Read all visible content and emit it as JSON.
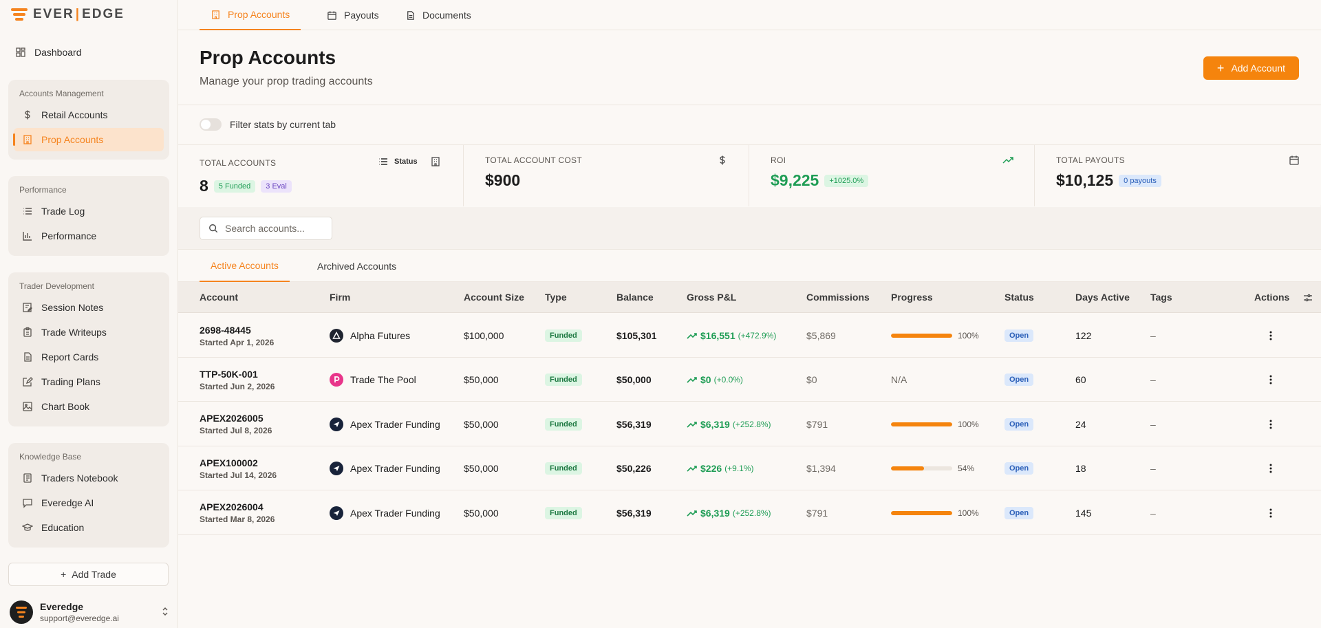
{
  "brand": {
    "name": "EVER|EDGE",
    "accent": "#f5841f"
  },
  "sidebar": {
    "dashboard": "Dashboard",
    "groups": [
      {
        "title": "Accounts Management",
        "items": [
          {
            "label": "Retail Accounts",
            "icon": "dollar-icon"
          },
          {
            "label": "Prop Accounts",
            "icon": "building-icon",
            "active": true
          }
        ]
      },
      {
        "title": "Performance",
        "items": [
          {
            "label": "Trade Log",
            "icon": "list-icon"
          },
          {
            "label": "Performance",
            "icon": "bar-chart-icon"
          }
        ]
      },
      {
        "title": "Trader Development",
        "items": [
          {
            "label": "Session Notes",
            "icon": "note-edit-icon"
          },
          {
            "label": "Trade Writeups",
            "icon": "clipboard-icon"
          },
          {
            "label": "Report Cards",
            "icon": "report-icon"
          },
          {
            "label": "Trading Plans",
            "icon": "pencil-square-icon"
          },
          {
            "label": "Chart Book",
            "icon": "image-icon"
          }
        ]
      },
      {
        "title": "Knowledge Base",
        "items": [
          {
            "label": "Traders Notebook",
            "icon": "notebook-icon"
          },
          {
            "label": "Everedge AI",
            "icon": "chat-icon"
          },
          {
            "label": "Education",
            "icon": "graduation-cap-icon"
          }
        ]
      }
    ],
    "add_trade": "Add Trade",
    "user": {
      "name": "Everedge",
      "email": "support@everedge.ai"
    }
  },
  "top_tabs": [
    "Prop Accounts",
    "Payouts",
    "Documents"
  ],
  "header": {
    "title": "Prop Accounts",
    "subtitle": "Manage your prop trading accounts",
    "add_button": "Add Account"
  },
  "filter": {
    "label": "Filter stats by current tab",
    "on": false
  },
  "stats": {
    "total_accounts": {
      "label": "TOTAL ACCOUNTS",
      "value": "8",
      "funded": "5 Funded",
      "eval": "3 Eval",
      "status_label": "Status"
    },
    "total_cost": {
      "label": "TOTAL ACCOUNT COST",
      "value": "$900"
    },
    "roi": {
      "label": "ROI",
      "value": "$9,225",
      "badge": "+1025.0%"
    },
    "total_payouts": {
      "label": "TOTAL PAYOUTS",
      "value": "$10,125",
      "badge": "0 payouts"
    }
  },
  "search": {
    "placeholder": "Search accounts..."
  },
  "sub_tabs": [
    "Active Accounts",
    "Archived Accounts"
  ],
  "table": {
    "columns": [
      "Account",
      "Firm",
      "Account Size",
      "Type",
      "Balance",
      "Gross P&L",
      "Commissions",
      "Progress",
      "Status",
      "Days Active",
      "Tags",
      "Actions"
    ],
    "rows": [
      {
        "account": "2698-48445",
        "started": "Started Apr 1, 2026",
        "firm": "Alpha Futures",
        "firm_logo": "alpha",
        "size": "$100,000",
        "type": "Funded",
        "balance": "$105,301",
        "pnl": "$16,551",
        "pnl_pct": "(+472.9%)",
        "commissions": "$5,869",
        "progress": 1.0,
        "progress_label": "100%",
        "status": "Open",
        "days": "122",
        "tags": "–"
      },
      {
        "account": "TTP-50K-001",
        "started": "Started Jun 2, 2026",
        "firm": "Trade The Pool",
        "firm_logo": "ttp",
        "size": "$50,000",
        "type": "Funded",
        "balance": "$50,000",
        "pnl": "$0",
        "pnl_pct": "(+0.0%)",
        "commissions": "$0",
        "progress": null,
        "progress_label": "N/A",
        "status": "Open",
        "days": "60",
        "tags": "–"
      },
      {
        "account": "APEX2026005",
        "started": "Started Jul 8, 2026",
        "firm": "Apex Trader Funding",
        "firm_logo": "apex",
        "size": "$50,000",
        "type": "Funded",
        "balance": "$56,319",
        "pnl": "$6,319",
        "pnl_pct": "(+252.8%)",
        "commissions": "$791",
        "progress": 1.0,
        "progress_label": "100%",
        "status": "Open",
        "days": "24",
        "tags": "–"
      },
      {
        "account": "APEX100002",
        "started": "Started Jul 14, 2026",
        "firm": "Apex Trader Funding",
        "firm_logo": "apex",
        "size": "$50,000",
        "type": "Funded",
        "balance": "$50,226",
        "pnl": "$226",
        "pnl_pct": "(+9.1%)",
        "commissions": "$1,394",
        "progress": 0.54,
        "progress_label": "54%",
        "status": "Open",
        "days": "18",
        "tags": "–"
      },
      {
        "account": "APEX2026004",
        "started": "Started Mar 8, 2026",
        "firm": "Apex Trader Funding",
        "firm_logo": "apex",
        "size": "$50,000",
        "type": "Funded",
        "balance": "$56,319",
        "pnl": "$6,319",
        "pnl_pct": "(+252.8%)",
        "commissions": "$791",
        "progress": 1.0,
        "progress_label": "100%",
        "status": "Open",
        "days": "145",
        "tags": "–"
      }
    ]
  }
}
